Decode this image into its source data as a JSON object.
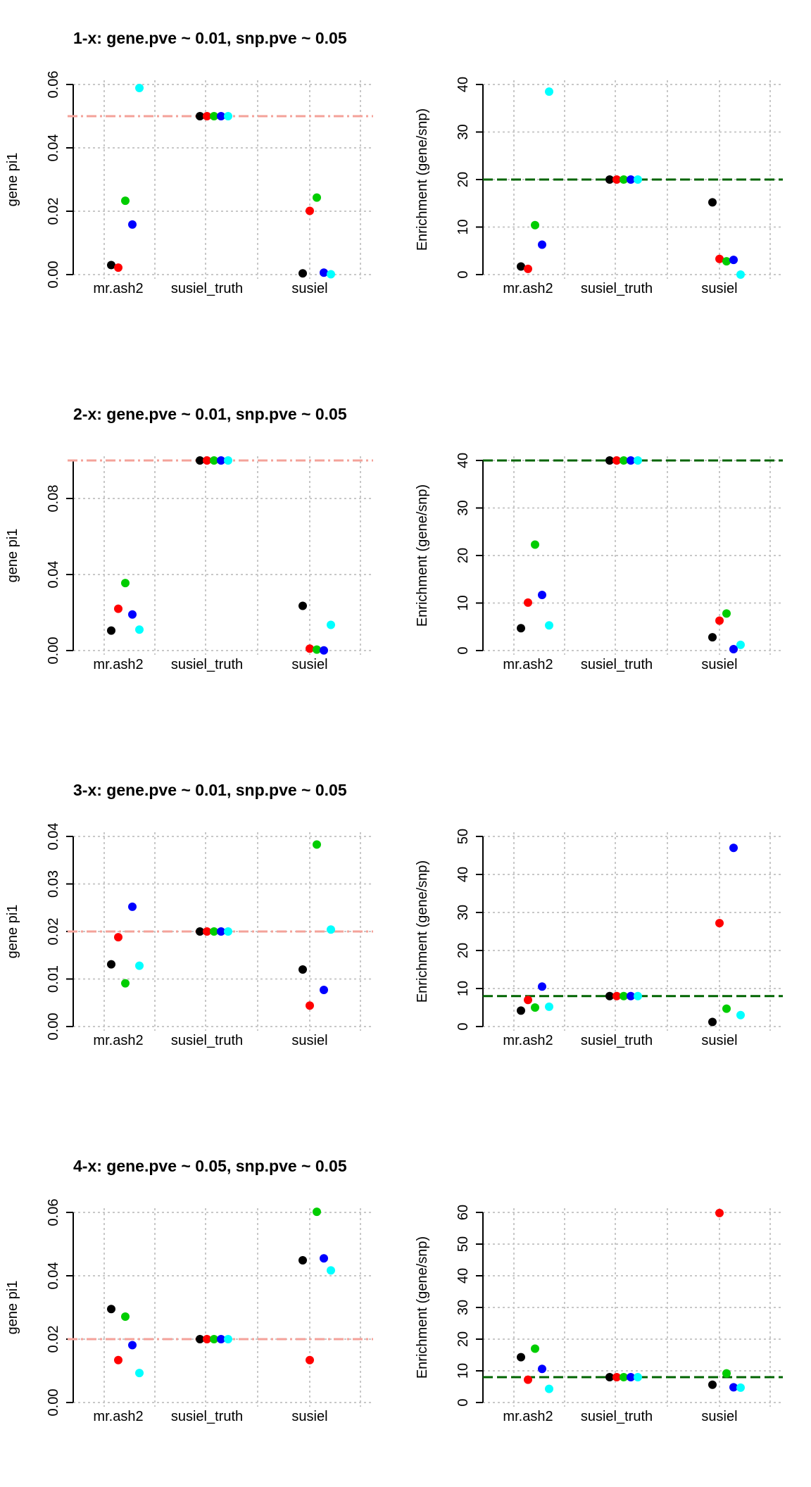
{
  "colors": [
    "#000000",
    "#ff0000",
    "#00cd00",
    "#0000ff",
    "#00ffff"
  ],
  "ref_colors": {
    "left": "#f4a29a",
    "right": "#006400"
  },
  "chart_data": [
    {
      "type": "scatter",
      "row": 0,
      "side": "left",
      "title": "1-x: gene.pve ~ 0.01, snp.pve ~ 0.05",
      "ylabel": "gene pi1",
      "grid": true,
      "categories": [
        "mr.ash2",
        "susiel_truth",
        "susiel"
      ],
      "ylim": [
        0,
        0.06
      ],
      "yticks": [
        "0.00",
        "0.02",
        "0.04",
        "0.06"
      ],
      "reference": 0.05,
      "points": [
        [
          0.003,
          0.0022,
          0.0233,
          0.0158,
          0.0589
        ],
        [
          0.05,
          0.05,
          0.05,
          0.05,
          0.05
        ],
        [
          0.0004,
          0.0201,
          0.0243,
          0.0006,
          0.0001
        ]
      ]
    },
    {
      "type": "scatter",
      "row": 0,
      "side": "right",
      "title": "",
      "ylabel": "Enrichment (gene/snp)",
      "grid": true,
      "categories": [
        "mr.ash2",
        "susiel_truth",
        "susiel"
      ],
      "ylim": [
        0,
        40
      ],
      "yticks": [
        "0",
        "10",
        "20",
        "30",
        "40"
      ],
      "reference": 20,
      "points": [
        [
          1.7,
          1.2,
          10.4,
          6.3,
          38.5
        ],
        [
          20,
          20,
          20,
          20,
          20
        ],
        [
          15.2,
          3.3,
          2.8,
          3.1,
          0
        ]
      ]
    },
    {
      "type": "scatter",
      "row": 1,
      "side": "left",
      "title": "2-x: gene.pve ~ 0.01, snp.pve ~ 0.05",
      "ylabel": "gene pi1",
      "grid": true,
      "categories": [
        "mr.ash2",
        "susiel_truth",
        "susiel"
      ],
      "ylim": [
        0,
        0.1
      ],
      "yticks": [
        "0.00",
        "0.04",
        "0.08"
      ],
      "reference": 0.1,
      "points": [
        [
          0.0105,
          0.022,
          0.0355,
          0.019,
          0.011
        ],
        [
          0.1,
          0.1,
          0.1,
          0.1,
          0.1
        ],
        [
          0.0235,
          0.001,
          0.0005,
          0.0001,
          0.0135
        ]
      ]
    },
    {
      "type": "scatter",
      "row": 1,
      "side": "right",
      "title": "",
      "ylabel": "Enrichment (gene/snp)",
      "grid": true,
      "categories": [
        "mr.ash2",
        "susiel_truth",
        "susiel"
      ],
      "ylim": [
        0,
        40
      ],
      "yticks": [
        "0",
        "10",
        "20",
        "30",
        "40"
      ],
      "reference": 40,
      "points": [
        [
          4.7,
          10.1,
          22.3,
          11.7,
          5.3
        ],
        [
          40,
          40,
          40,
          40,
          40
        ],
        [
          2.8,
          6.3,
          7.8,
          0.3,
          1.2
        ]
      ]
    },
    {
      "type": "scatter",
      "row": 2,
      "side": "left",
      "title": "3-x: gene.pve ~ 0.01, snp.pve ~ 0.05",
      "ylabel": "gene pi1",
      "grid": true,
      "categories": [
        "mr.ash2",
        "susiel_truth",
        "susiel"
      ],
      "ylim": [
        0,
        0.04
      ],
      "yticks": [
        "0.00",
        "0.01",
        "0.02",
        "0.03",
        "0.04"
      ],
      "reference": 0.02,
      "points": [
        [
          0.0131,
          0.0188,
          0.0091,
          0.0252,
          0.0128
        ],
        [
          0.02,
          0.02,
          0.02,
          0.02,
          0.02
        ],
        [
          0.012,
          0.0044,
          0.0383,
          0.0077,
          0.0204
        ]
      ]
    },
    {
      "type": "scatter",
      "row": 2,
      "side": "right",
      "title": "",
      "ylabel": "Enrichment (gene/snp)",
      "grid": true,
      "categories": [
        "mr.ash2",
        "susiel_truth",
        "susiel"
      ],
      "ylim": [
        0,
        50
      ],
      "yticks": [
        "0",
        "10",
        "20",
        "30",
        "40",
        "50"
      ],
      "reference": 8,
      "points": [
        [
          4.2,
          7,
          5,
          10.5,
          5.2
        ],
        [
          8,
          8,
          8,
          8,
          8
        ],
        [
          1.2,
          27.2,
          4.7,
          47,
          3
        ]
      ]
    },
    {
      "type": "scatter",
      "row": 3,
      "side": "left",
      "title": "4-x: gene.pve ~ 0.05, snp.pve ~ 0.05",
      "ylabel": "gene pi1",
      "grid": true,
      "categories": [
        "mr.ash2",
        "susiel_truth",
        "susiel"
      ],
      "ylim": [
        0,
        0.06
      ],
      "yticks": [
        "0.00",
        "0.02",
        "0.04",
        "0.06"
      ],
      "reference": 0.02,
      "points": [
        [
          0.0295,
          0.0134,
          0.0271,
          0.0181,
          0.0093
        ],
        [
          0.02,
          0.02,
          0.02,
          0.02,
          0.02
        ],
        [
          0.0449,
          0.0134,
          0.0602,
          0.0455,
          0.0417
        ]
      ]
    },
    {
      "type": "scatter",
      "row": 3,
      "side": "right",
      "title": "",
      "ylabel": "Enrichment (gene/snp)",
      "grid": true,
      "categories": [
        "mr.ash2",
        "susiel_truth",
        "susiel"
      ],
      "ylim": [
        0,
        60
      ],
      "yticks": [
        "0",
        "10",
        "20",
        "30",
        "40",
        "50",
        "60"
      ],
      "reference": 8,
      "points": [
        [
          14.3,
          7.2,
          17,
          10.6,
          4.3
        ],
        [
          8,
          8,
          8,
          8,
          8
        ],
        [
          5.6,
          59.8,
          9.2,
          4.8,
          4.7
        ]
      ]
    }
  ]
}
